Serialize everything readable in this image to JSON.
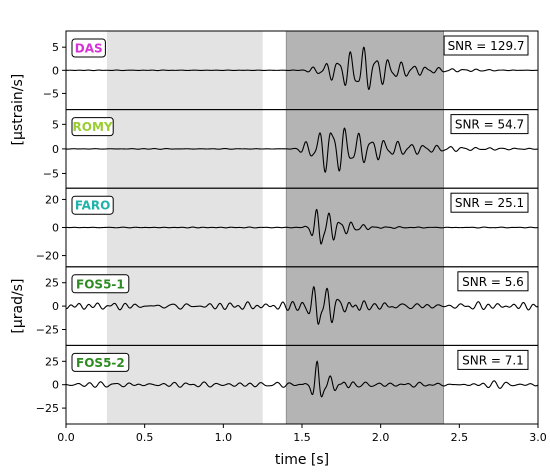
{
  "chart_data": {
    "type": "line",
    "xlabel": "time [s]",
    "xlim": [
      0.0,
      3.0
    ],
    "x_ticks": [
      "0.0",
      "0.5",
      "1.0",
      "1.5",
      "2.0",
      "2.5",
      "3.0"
    ],
    "x_tick_values": [
      0.0,
      0.5,
      1.0,
      1.5,
      2.0,
      2.5,
      3.0
    ],
    "shaded_regions": [
      {
        "name": "noise-window",
        "x0": 0.26,
        "x1": 1.25,
        "color": "#e3e3e3"
      },
      {
        "name": "signal-window",
        "x0": 1.4,
        "x1": 2.4,
        "color": "#b4b4b4"
      }
    ],
    "y_group_labels": [
      {
        "text": "[μstrain/s]",
        "panels": [
          0,
          1
        ]
      },
      {
        "text": "[μrad/s]",
        "panels": [
          2,
          3,
          4
        ]
      }
    ],
    "panels": [
      {
        "name": "DAS",
        "color": "#d633d6",
        "snr": "SNR = 129.7",
        "ylim": [
          -8.5,
          8.5
        ],
        "y_ticks": [
          "5",
          "0",
          "−5"
        ],
        "y_tick_values": [
          5,
          0,
          -5
        ],
        "onset": 1.47,
        "peak_time": 1.88,
        "amp": 4.2,
        "freq": 12.5,
        "rise": 0.14,
        "decay": 0.22,
        "noise": 0.04
      },
      {
        "name": "ROMY",
        "color": "#9acd32",
        "snr": "SNR = 54.7",
        "ylim": [
          -8.0,
          8.0
        ],
        "y_ticks": [
          "5",
          "0",
          "−5"
        ],
        "y_tick_values": [
          5,
          0,
          -5
        ],
        "onset": 1.42,
        "peak_time": 1.68,
        "amp": 4.4,
        "freq": 12.0,
        "rise": 0.1,
        "decay": 0.32,
        "noise": 0.05
      },
      {
        "name": "FARO",
        "color": "#20b2aa",
        "snr": "SNR = 25.1",
        "ylim": [
          -28.0,
          28.0
        ],
        "y_ticks": [
          "20",
          "0",
          "−20"
        ],
        "y_tick_values": [
          20,
          0,
          -20
        ],
        "onset": 1.5,
        "peak_time": 1.62,
        "amp": 14.0,
        "freq": 13.5,
        "rise": 0.06,
        "decay": 0.12,
        "noise": 0.25
      },
      {
        "name": "FOS5-1",
        "color": "#2e8b22",
        "snr": "SNR = 5.6",
        "ylim": [
          -42.0,
          42.0
        ],
        "y_ticks": [
          "25",
          "0",
          "−25"
        ],
        "y_tick_values": [
          25,
          0,
          -25
        ],
        "onset": 1.48,
        "peak_time": 1.6,
        "amp": 24.0,
        "freq": 13.0,
        "rise": 0.06,
        "decay": 0.14,
        "noise": 3.2
      },
      {
        "name": "FOS5-2",
        "color": "#2e8b22",
        "snr": "SNR = 7.1",
        "ylim": [
          -42.0,
          42.0
        ],
        "y_ticks": [
          "25",
          "0",
          "−25"
        ],
        "y_tick_values": [
          25,
          0,
          -25
        ],
        "onset": 1.5,
        "peak_time": 1.6,
        "amp": 20.0,
        "freq": 13.0,
        "rise": 0.05,
        "decay": 0.1,
        "noise": 2.4
      }
    ]
  }
}
